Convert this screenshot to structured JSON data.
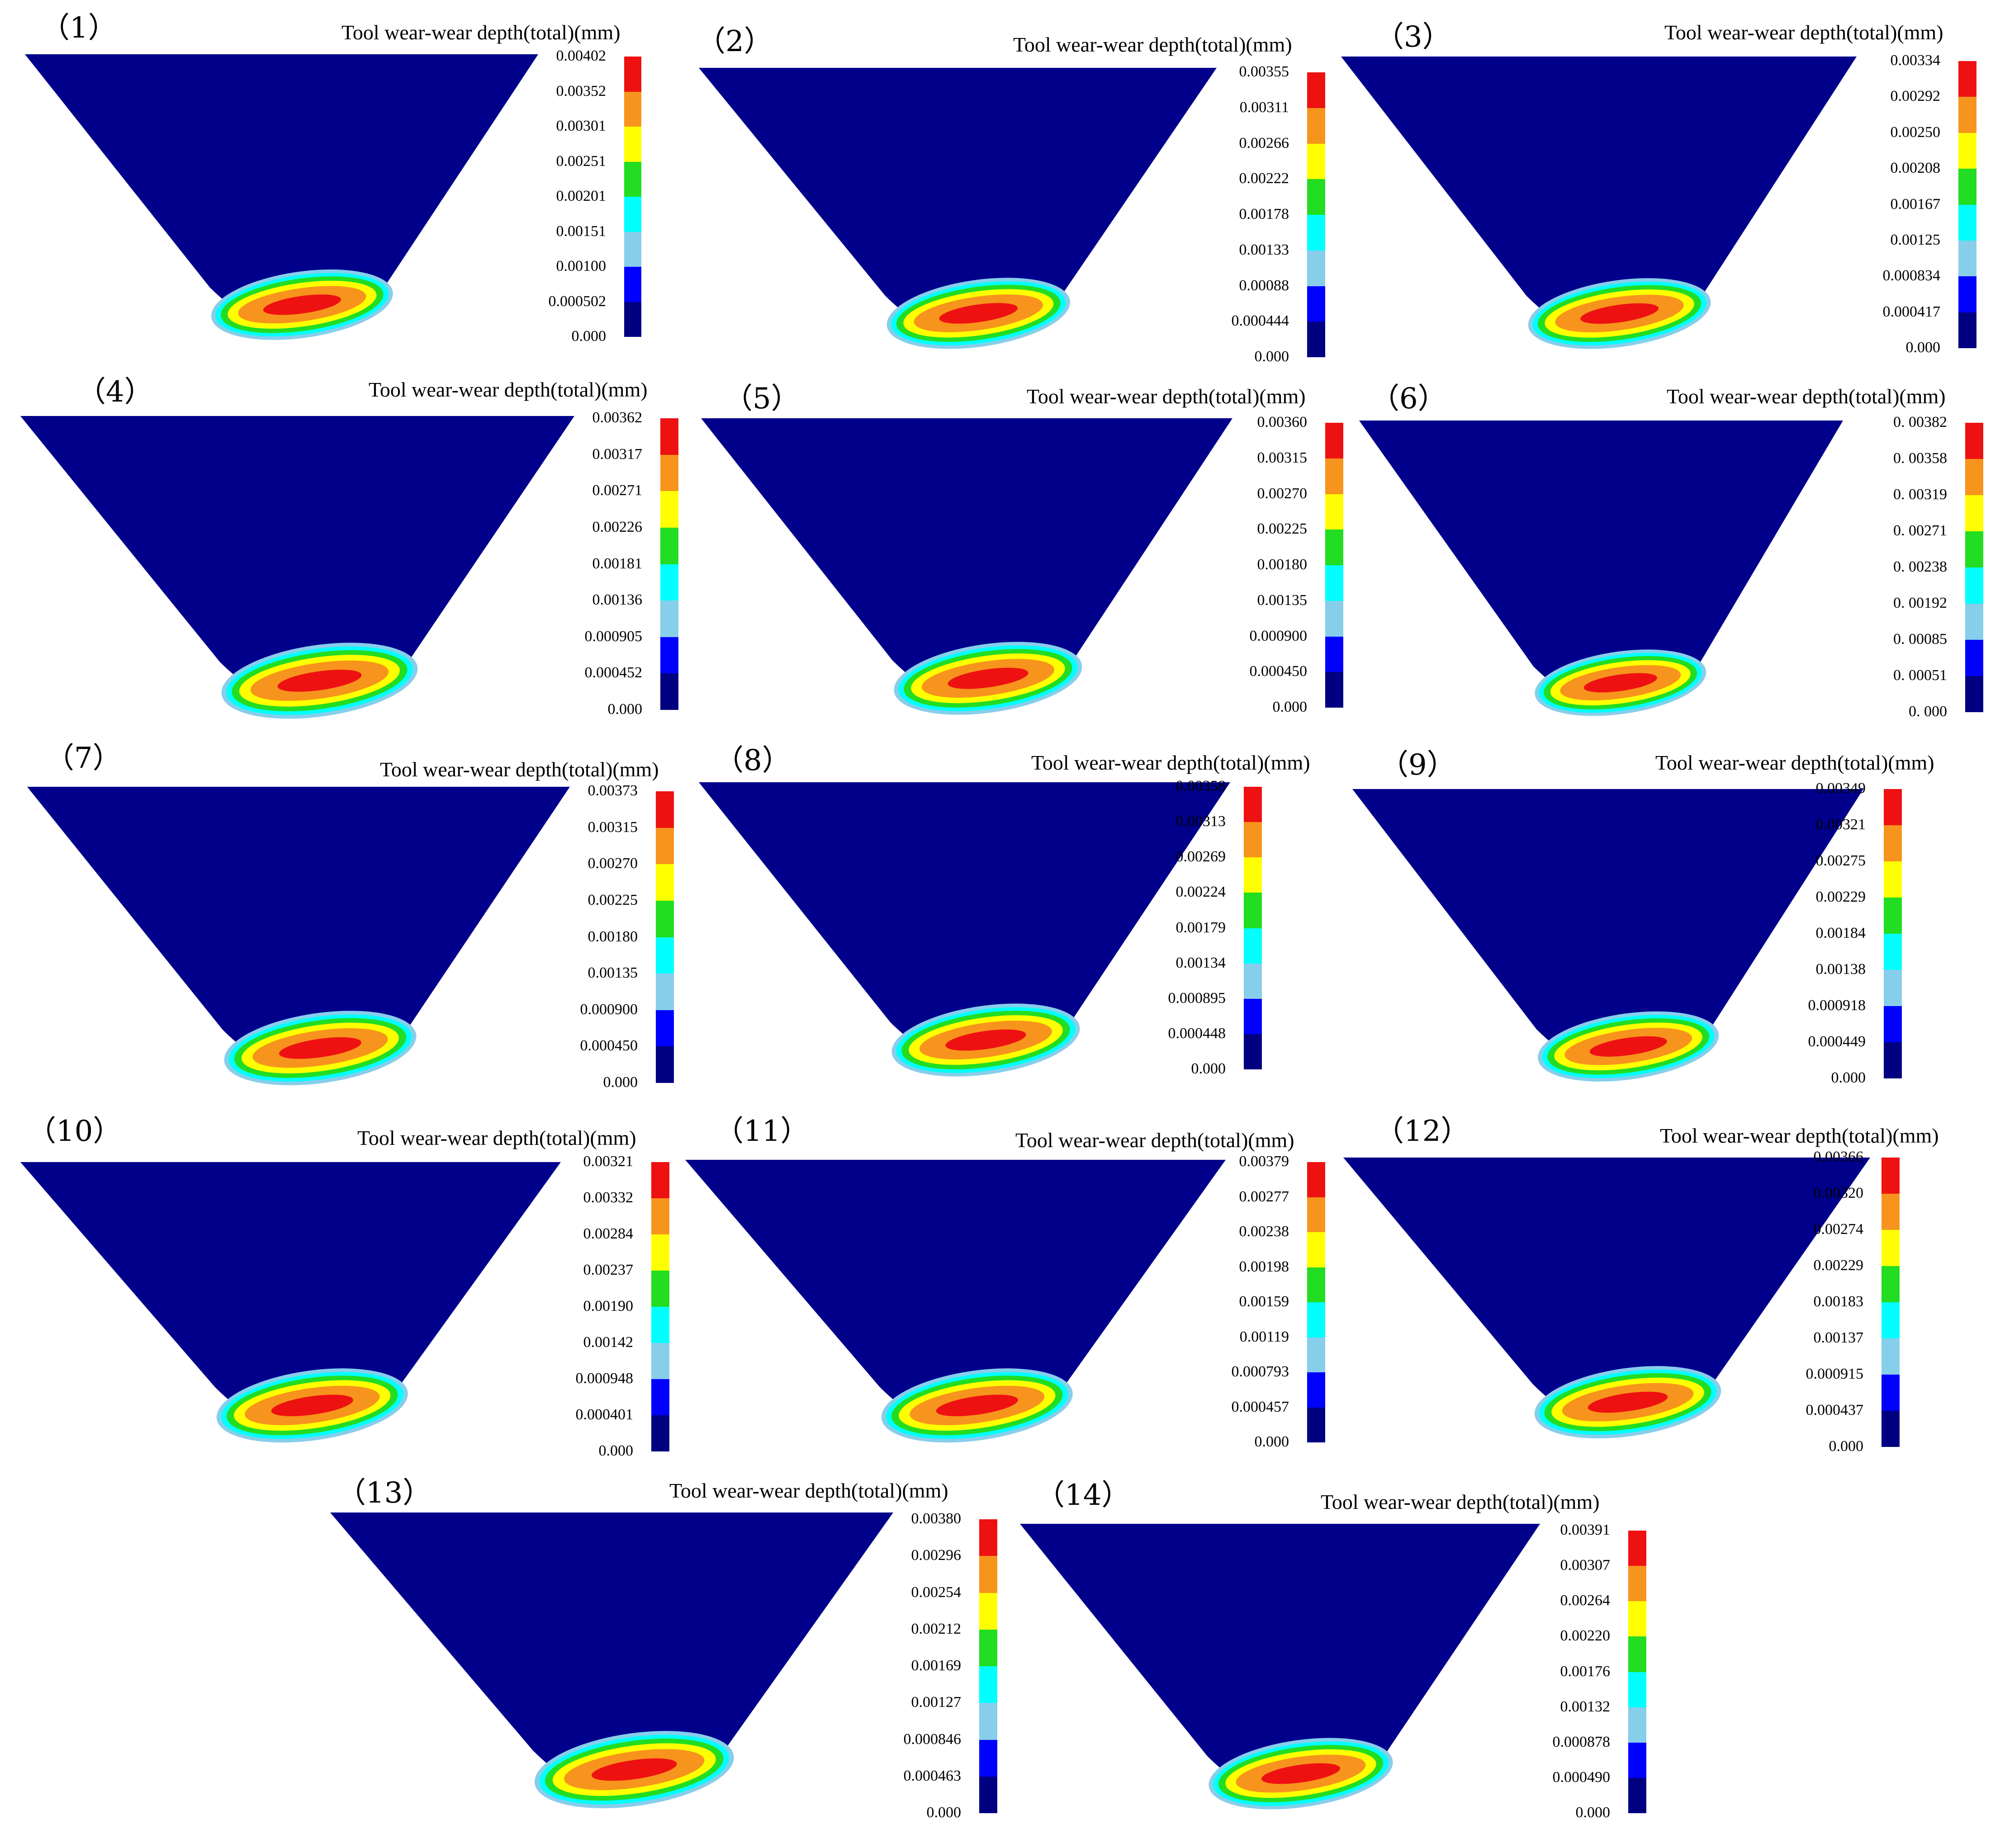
{
  "legend_title": "Tool wear-wear depth(total)(mm)",
  "colorbar_colors": [
    "#ee1111",
    "#f7941d",
    "#ffff00",
    "#22dd22",
    "#00ffff",
    "#87ceeb",
    "#0000ff",
    "#000080"
  ],
  "tool_fill_color": "#00008b",
  "panels": [
    {
      "label": "（1）",
      "ticks": [
        "0.00402",
        "0.00352",
        "0.00301",
        "0.00251",
        "0.00201",
        "0.00151",
        "0.00100",
        "0.000502",
        "0.000"
      ]
    },
    {
      "label": "（2）",
      "ticks": [
        "0.00355",
        "0.00311",
        "0.00266",
        "0.00222",
        "0.00178",
        "0.00133",
        "0.00088",
        "0.000444",
        "0.000"
      ]
    },
    {
      "label": "（3）",
      "ticks": [
        "0.00334",
        "0.00292",
        "0.00250",
        "0.00208",
        "0.00167",
        "0.00125",
        "0.000834",
        "0.000417",
        "0.000"
      ]
    },
    {
      "label": "（4）",
      "ticks": [
        "0.00362",
        "0.00317",
        "0.00271",
        "0.00226",
        "0.00181",
        "0.00136",
        "0.000905",
        "0.000452",
        "0.000"
      ]
    },
    {
      "label": "（5）",
      "ticks": [
        "0.00360",
        "0.00315",
        "0.00270",
        "0.00225",
        "0.00180",
        "0.00135",
        "0.000900",
        "0.000450",
        "0.000"
      ]
    },
    {
      "label": "（6）",
      "ticks": [
        "0. 00382",
        "0. 00358",
        "0. 00319",
        "0. 00271",
        "0. 00238",
        "0. 00192",
        "0. 00085",
        "0. 00051",
        "0. 000"
      ]
    },
    {
      "label": "（7）",
      "ticks": [
        "0.00373",
        "0.00315",
        "0.00270",
        "0.00225",
        "0.00180",
        "0.00135",
        "0.000900",
        "0.000450",
        "0.000"
      ]
    },
    {
      "label": "（8）",
      "ticks": [
        "0.00358",
        "0.00313",
        "0.00269",
        "0.00224",
        "0.00179",
        "0.00134",
        "0.000895",
        "0.000448",
        "0.000"
      ]
    },
    {
      "label": "（9）",
      "ticks": [
        "0.00349",
        "0.00321",
        "0.00275",
        "0.00229",
        "0.00184",
        "0.00138",
        "0.000918",
        "0.000449",
        "0.000"
      ]
    },
    {
      "label": "（10）",
      "ticks": [
        "0.00321",
        "0.00332",
        "0.00284",
        "0.00237",
        "0.00190",
        "0.00142",
        "0.000948",
        "0.000401",
        "0.000"
      ]
    },
    {
      "label": "（11）",
      "ticks": [
        "0.00379",
        "0.00277",
        "0.00238",
        "0.00198",
        "0.00159",
        "0.00119",
        "0.000793",
        "0.000457",
        "0.000"
      ]
    },
    {
      "label": "（12）",
      "ticks": [
        "0.00366",
        "0.00320",
        "0.00274",
        "0.00229",
        "0.00183",
        "0.00137",
        "0.000915",
        "0.000437",
        "0.000"
      ]
    },
    {
      "label": "（13）",
      "ticks": [
        "0.00380",
        "0.00296",
        "0.00254",
        "0.00212",
        "0.00169",
        "0.00127",
        "0.000846",
        "0.000463",
        "0.000"
      ]
    },
    {
      "label": "（14）",
      "ticks": [
        "0.00391",
        "0.00307",
        "0.00264",
        "0.00220",
        "0.00176",
        "0.00132",
        "0.000878",
        "0.000490",
        "0.000"
      ]
    }
  ]
}
